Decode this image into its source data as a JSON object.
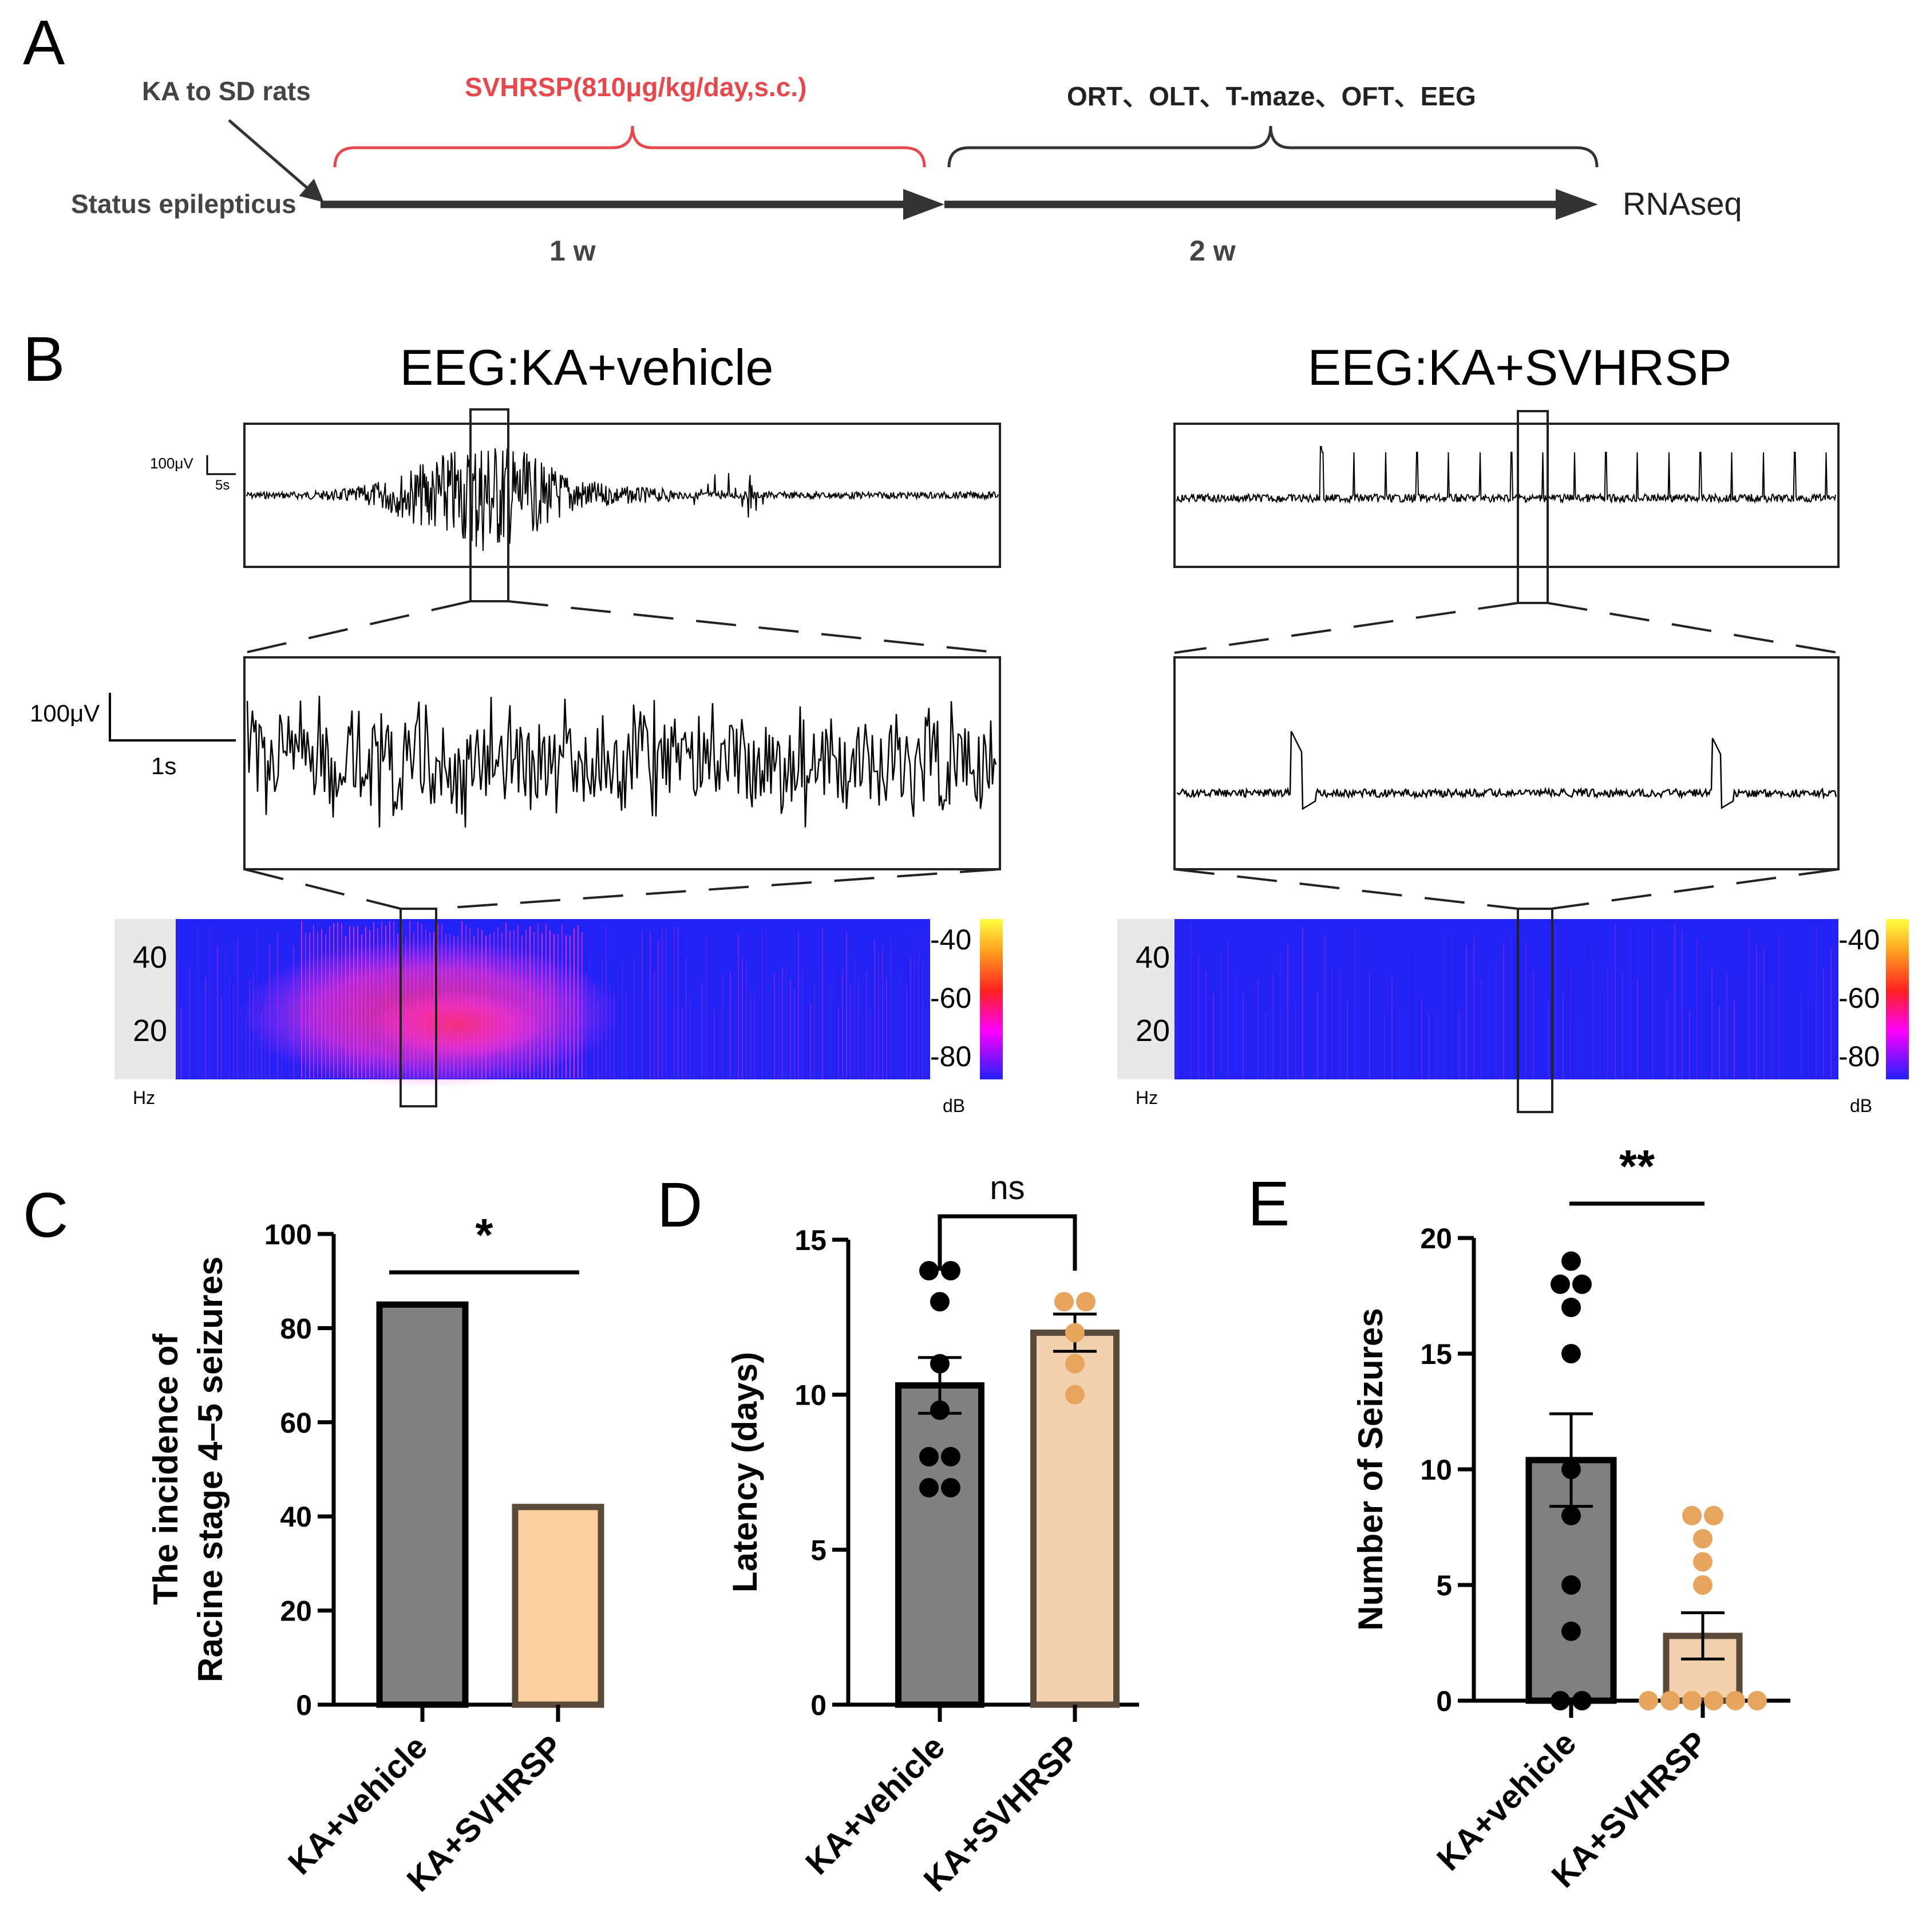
{
  "panel_a": {
    "letter": "A",
    "ka_label": "KA to SD rats",
    "treatment": "SVHRSP(810μg/kg/day,s.c.)",
    "tests": "ORT、OLT、T-maze、OFT、EEG",
    "status": "Status epilepticus",
    "week1": "1 w",
    "week2": "2 w",
    "rnaseq": "RNAseq",
    "colors": {
      "treatment": "#e8474c",
      "axis": "#333333"
    }
  },
  "panel_b": {
    "letter": "B",
    "left_title": "EEG:KA+vehicle",
    "right_title": "EEG:KA+SVHRSP",
    "scale_top_uv": "100μV",
    "scale_top_time": "5s",
    "scale_mid_uv": "100μV",
    "scale_mid_time": "1s",
    "freq_ticks": [
      "40",
      "20"
    ],
    "freq_unit": "Hz",
    "db_ticks": [
      "-40",
      "-60",
      "-80"
    ],
    "db_unit": "dB"
  },
  "chart_data": [
    {
      "panel": "C",
      "type": "bar",
      "ylabel_line1": "The incidence of",
      "ylabel_line2": "Racine stage 4–5 seizures",
      "categories": [
        "KA+vehicle",
        "KA+SVHRSP"
      ],
      "values": [
        85,
        42
      ],
      "ylim": [
        0,
        100
      ],
      "yticks": [
        "0",
        "20",
        "40",
        "60",
        "80",
        "100"
      ],
      "significance": "*",
      "colors": [
        "#808080",
        "#fdd0a2"
      ]
    },
    {
      "panel": "D",
      "type": "bar",
      "ylabel": "Latency (days)",
      "categories": [
        "KA+vehicle",
        "KA+SVHRSP"
      ],
      "values": [
        10.3,
        12.0
      ],
      "sem": [
        0.9,
        0.6
      ],
      "points": [
        [
          14,
          14,
          13,
          11,
          9.5,
          8,
          8,
          7,
          7
        ],
        [
          13,
          13,
          12,
          11,
          10
        ]
      ],
      "ylim": [
        0,
        15
      ],
      "yticks": [
        "0",
        "5",
        "10",
        "15"
      ],
      "significance": "ns",
      "colors": [
        "#808080",
        "#f2d2ae"
      ],
      "point_colors": [
        "#000000",
        "#e6a45d"
      ]
    },
    {
      "panel": "E",
      "type": "bar",
      "ylabel": "Number of Seizures",
      "categories": [
        "KA+vehicle",
        "KA+SVHRSP"
      ],
      "values": [
        10.4,
        2.8
      ],
      "sem": [
        2.0,
        1.0
      ],
      "points": [
        [
          19,
          18,
          18,
          17,
          15,
          10,
          8,
          5,
          3,
          0,
          0
        ],
        [
          8,
          8,
          7,
          6,
          5,
          0,
          0,
          0,
          0,
          0,
          0
        ]
      ],
      "ylim": [
        0,
        20
      ],
      "yticks": [
        "0",
        "5",
        "10",
        "15",
        "20"
      ],
      "significance": "**",
      "colors": [
        "#808080",
        "#f2d2ae"
      ],
      "point_colors": [
        "#000000",
        "#e6a45d"
      ]
    }
  ],
  "panel_letters": {
    "c": "C",
    "d": "D",
    "e": "E"
  }
}
